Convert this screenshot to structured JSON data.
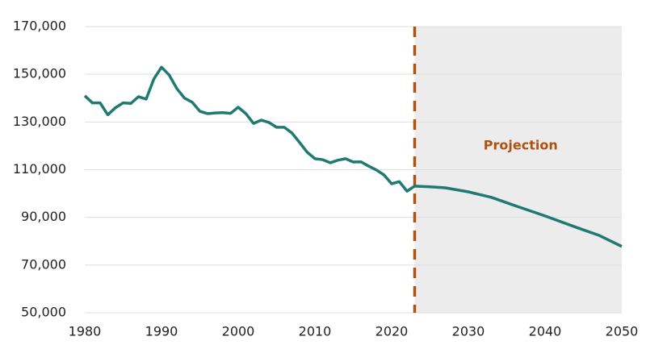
{
  "chart_data": {
    "type": "line",
    "x": [
      1980,
      1981,
      1982,
      1983,
      1984,
      1985,
      1986,
      1987,
      1988,
      1989,
      1990,
      1991,
      1992,
      1993,
      1994,
      1995,
      1996,
      1997,
      1998,
      1999,
      2000,
      2001,
      2002,
      2003,
      2004,
      2005,
      2006,
      2007,
      2008,
      2009,
      2010,
      2011,
      2012,
      2013,
      2014,
      2015,
      2016,
      2017,
      2018,
      2019,
      2020,
      2021,
      2022,
      2023,
      2025,
      2027,
      2030,
      2033,
      2036,
      2040,
      2044,
      2047,
      2050
    ],
    "series": [
      {
        "color": "#1f7a72",
        "values": [
          141000,
          138000,
          138000,
          133000,
          136000,
          138000,
          137800,
          140600,
          139600,
          148000,
          153000,
          149700,
          144000,
          140000,
          138300,
          134500,
          133500,
          133800,
          133900,
          133600,
          136200,
          133500,
          129400,
          130800,
          129800,
          127800,
          127800,
          125400,
          121400,
          117300,
          114600,
          114200,
          112900,
          114000,
          114600,
          113200,
          113300,
          111500,
          109900,
          107800,
          104100,
          105000,
          101000,
          103100,
          102800,
          102400,
          100700,
          98400,
          95000,
          90600,
          85900,
          82500,
          77800
        ]
      }
    ],
    "xlim": [
      1980,
      2050
    ],
    "xticks": [
      1980,
      1990,
      2000,
      2010,
      2020,
      2030,
      2040,
      2050
    ],
    "ylim": [
      50000,
      170000
    ],
    "yticks": [
      {
        "value": 50000,
        "label": "50,000"
      },
      {
        "value": 70000,
        "label": "70,000"
      },
      {
        "value": 90000,
        "label": "90,000"
      },
      {
        "value": 110000,
        "label": "110,000"
      },
      {
        "value": 130000,
        "label": "130,000"
      },
      {
        "value": 150000,
        "label": "150,000"
      },
      {
        "value": 170000,
        "label": "170,000"
      }
    ],
    "grid": true,
    "projection": {
      "label": "Projection",
      "start": 2023,
      "color": "#b0520f",
      "shade": "#ececec"
    }
  }
}
